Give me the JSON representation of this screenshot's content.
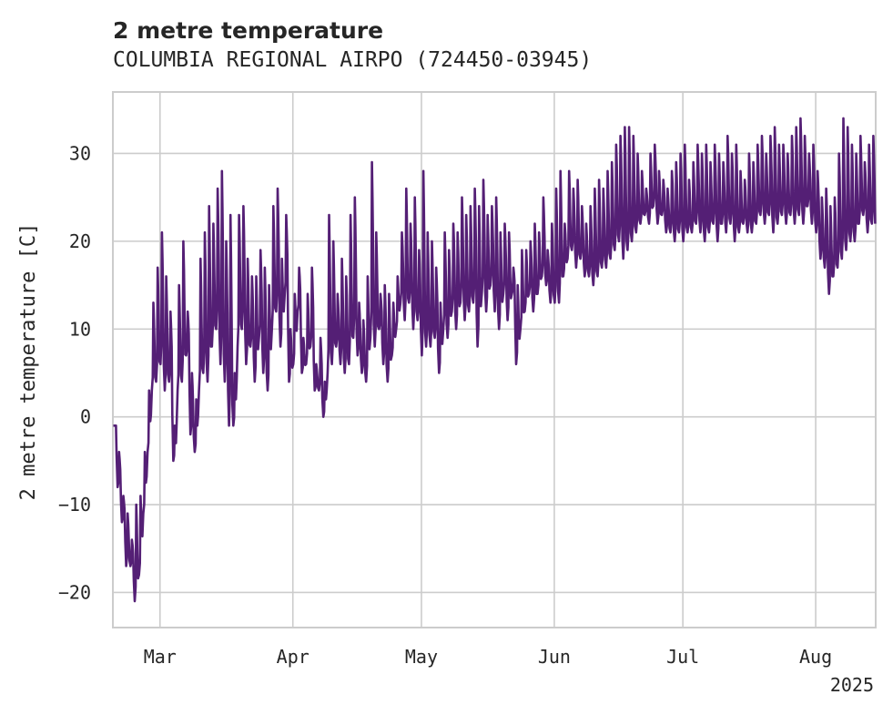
{
  "chart_data": {
    "type": "line",
    "title": "2 metre temperature",
    "subtitle": "COLUMBIA REGIONAL AIRPO (724450-03945)",
    "ylabel": "2 metre temperature [C]",
    "xlabel": "",
    "ylim": [
      -24,
      37
    ],
    "xlim": [
      "2025-02-18",
      "2025-08-15"
    ],
    "y_ticks": [
      -20,
      -10,
      0,
      10,
      20,
      30
    ],
    "x_ticks": [
      {
        "date": "2025-03-01",
        "label": "Mar"
      },
      {
        "date": "2025-04-01",
        "label": "Apr"
      },
      {
        "date": "2025-05-01",
        "label": "May"
      },
      {
        "date": "2025-06-01",
        "label": "Jun"
      },
      {
        "date": "2025-07-01",
        "label": "Jul"
      },
      {
        "date": "2025-08-01",
        "label": "Aug"
      }
    ],
    "x_offset_label": "2025",
    "grid": true,
    "line_color": "#541f75",
    "series": [
      {
        "x": [
          "2025-02-18",
          "2025-02-19",
          "2025-02-20",
          "2025-02-21",
          "2025-02-22",
          "2025-02-23",
          "2025-02-24",
          "2025-02-25",
          "2025-02-26",
          "2025-02-27",
          "2025-02-28",
          "2025-03-01",
          "2025-03-02",
          "2025-03-03",
          "2025-03-04",
          "2025-03-05",
          "2025-03-06",
          "2025-03-07",
          "2025-03-08",
          "2025-03-09",
          "2025-03-10",
          "2025-03-11",
          "2025-03-12",
          "2025-03-13",
          "2025-03-14",
          "2025-03-15",
          "2025-03-16",
          "2025-03-17",
          "2025-03-18",
          "2025-03-19",
          "2025-03-20",
          "2025-03-21",
          "2025-03-22",
          "2025-03-23",
          "2025-03-24",
          "2025-03-25",
          "2025-03-26",
          "2025-03-27",
          "2025-03-28",
          "2025-03-29",
          "2025-03-30",
          "2025-03-31",
          "2025-04-01",
          "2025-04-02",
          "2025-04-03",
          "2025-04-04",
          "2025-04-05",
          "2025-04-06",
          "2025-04-07",
          "2025-04-08",
          "2025-04-09",
          "2025-04-10",
          "2025-04-11",
          "2025-04-12",
          "2025-04-13",
          "2025-04-14",
          "2025-04-15",
          "2025-04-16",
          "2025-04-17",
          "2025-04-18",
          "2025-04-19",
          "2025-04-20",
          "2025-04-21",
          "2025-04-22",
          "2025-04-23",
          "2025-04-24",
          "2025-04-25",
          "2025-04-26",
          "2025-04-27",
          "2025-04-28",
          "2025-04-29",
          "2025-04-30",
          "2025-05-01",
          "2025-05-02",
          "2025-05-03",
          "2025-05-04",
          "2025-05-05",
          "2025-05-06",
          "2025-05-07",
          "2025-05-08",
          "2025-05-09",
          "2025-05-10",
          "2025-05-11",
          "2025-05-12",
          "2025-05-13",
          "2025-05-14",
          "2025-05-15",
          "2025-05-16",
          "2025-05-17",
          "2025-05-18",
          "2025-05-19",
          "2025-05-20",
          "2025-05-21",
          "2025-05-22",
          "2025-05-23",
          "2025-05-24",
          "2025-05-25",
          "2025-05-26",
          "2025-05-27",
          "2025-05-28",
          "2025-05-29",
          "2025-05-30",
          "2025-05-31",
          "2025-06-01",
          "2025-06-02",
          "2025-06-03",
          "2025-06-04",
          "2025-06-05",
          "2025-06-06",
          "2025-06-07",
          "2025-06-08",
          "2025-06-09",
          "2025-06-10",
          "2025-06-11",
          "2025-06-12",
          "2025-06-13",
          "2025-06-14",
          "2025-06-15",
          "2025-06-16",
          "2025-06-17",
          "2025-06-18",
          "2025-06-19",
          "2025-06-20",
          "2025-06-21",
          "2025-06-22",
          "2025-06-23",
          "2025-06-24",
          "2025-06-25",
          "2025-06-26",
          "2025-06-27",
          "2025-06-28",
          "2025-06-29",
          "2025-06-30",
          "2025-07-01",
          "2025-07-02",
          "2025-07-03",
          "2025-07-04",
          "2025-07-05",
          "2025-07-06",
          "2025-07-07",
          "2025-07-08",
          "2025-07-09",
          "2025-07-10",
          "2025-07-11",
          "2025-07-12",
          "2025-07-13",
          "2025-07-14",
          "2025-07-15",
          "2025-07-16",
          "2025-07-17",
          "2025-07-18",
          "2025-07-19",
          "2025-07-20",
          "2025-07-21",
          "2025-07-22",
          "2025-07-23",
          "2025-07-24",
          "2025-07-25",
          "2025-07-26",
          "2025-07-27",
          "2025-07-28",
          "2025-07-29",
          "2025-07-30",
          "2025-07-31",
          "2025-08-01",
          "2025-08-02",
          "2025-08-03",
          "2025-08-04",
          "2025-08-05",
          "2025-08-06",
          "2025-08-07",
          "2025-08-08",
          "2025-08-09",
          "2025-08-10",
          "2025-08-11",
          "2025-08-12",
          "2025-08-13",
          "2025-08-14"
        ],
        "min": [
          -1,
          -8,
          -12,
          -17,
          -17,
          -21,
          -18,
          -11,
          -4,
          3,
          4,
          6,
          3,
          4,
          -5,
          3,
          4,
          7,
          -2,
          -4,
          3,
          5,
          4,
          8,
          10,
          6,
          4,
          -1,
          -1,
          8,
          10,
          6,
          8,
          4,
          9,
          5,
          3,
          10,
          12,
          8,
          14,
          4,
          6,
          12,
          5,
          6,
          8,
          3,
          3,
          0,
          5,
          6,
          8,
          6,
          5,
          6,
          9,
          7,
          5,
          4,
          9,
          8,
          10,
          6,
          4,
          7,
          10,
          13,
          11,
          13,
          10,
          11,
          7,
          8,
          8,
          9,
          5,
          10,
          9,
          12,
          10,
          13,
          11,
          12,
          13,
          8,
          14,
          12,
          15,
          12,
          10,
          14,
          11,
          14,
          6,
          10,
          12,
          14,
          12,
          14,
          16,
          15,
          13,
          13,
          13,
          16,
          18,
          19,
          17,
          18,
          16,
          16,
          15,
          16,
          17,
          17,
          18,
          19,
          20,
          18,
          19,
          20,
          21,
          22,
          23,
          22,
          24,
          22,
          23,
          21,
          21,
          20,
          21,
          20,
          21,
          21,
          22,
          21,
          20,
          21,
          22,
          20,
          22,
          21,
          22,
          20,
          21,
          22,
          21,
          21,
          22,
          23,
          22,
          23,
          21,
          22,
          23,
          22,
          23,
          22,
          23,
          22,
          24,
          22,
          21,
          18,
          17,
          14,
          16,
          17,
          18,
          19,
          20,
          20,
          22,
          23,
          21,
          22,
          20,
          22
        ],
        "max": [
          -1,
          -4,
          -9,
          -11,
          -14,
          -10,
          -9,
          -4,
          3,
          13,
          17,
          21,
          16,
          12,
          -1,
          15,
          20,
          12,
          5,
          2,
          18,
          21,
          24,
          22,
          26,
          28,
          20,
          23,
          5,
          23,
          24,
          18,
          16,
          16,
          19,
          17,
          15,
          24,
          26,
          18,
          23,
          10,
          14,
          17,
          9,
          14,
          17,
          6,
          9,
          4,
          23,
          20,
          14,
          18,
          16,
          23,
          25,
          13,
          11,
          16,
          29,
          21,
          14,
          15,
          14,
          13,
          16,
          21,
          26,
          22,
          25,
          19,
          28,
          21,
          20,
          17,
          13,
          21,
          19,
          22,
          21,
          25,
          23,
          24,
          26,
          24,
          27,
          23,
          24,
          25,
          21,
          22,
          21,
          17,
          15,
          19,
          19,
          20,
          22,
          21,
          25,
          19,
          22,
          26,
          28,
          22,
          28,
          26,
          27,
          24,
          22,
          24,
          26,
          27,
          26,
          28,
          29,
          31,
          32,
          33,
          33,
          32,
          30,
          28,
          26,
          30,
          31,
          28,
          27,
          26,
          28,
          29,
          30,
          31,
          27,
          29,
          31,
          30,
          31,
          29,
          31,
          30,
          29,
          32,
          30,
          31,
          28,
          27,
          30,
          29,
          31,
          32,
          30,
          32,
          33,
          31,
          31,
          30,
          32,
          33,
          34,
          32,
          30,
          31,
          28,
          25,
          26,
          24,
          25,
          30,
          34,
          33,
          31,
          30,
          32,
          29,
          31,
          32
        ]
      }
    ]
  }
}
